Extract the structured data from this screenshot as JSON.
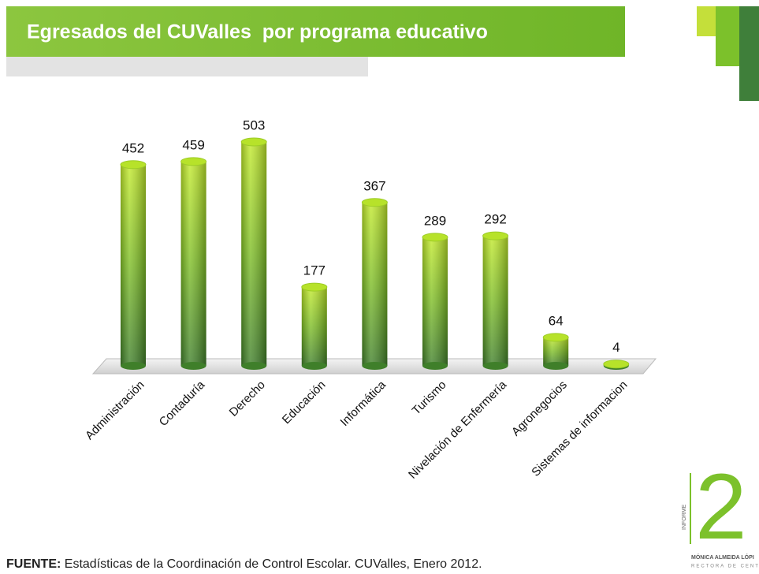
{
  "chart_data": {
    "type": "bar",
    "title": "Egresados del CUValles  por programa educativo",
    "categories": [
      "Administración",
      "Contaduría",
      "Derecho",
      "Educación",
      "Informática",
      "Turismo",
      "Nivelación de Enfermería",
      "Agronegocios",
      "Sistemas de informacion"
    ],
    "values": [
      452,
      459,
      503,
      177,
      367,
      289,
      292,
      64,
      4
    ],
    "color": "#7fc31c"
  },
  "footer": {
    "source_label": "FUENTE:",
    "source_text": " Estadísticas de la Coordinación de Control Escolar. CUValles, Enero 2012."
  },
  "logo": {
    "number": "2",
    "word": "INFORME",
    "name": "MÓNICA ALMEIDA LÓPI",
    "role": "RECTORA DE CENT"
  }
}
